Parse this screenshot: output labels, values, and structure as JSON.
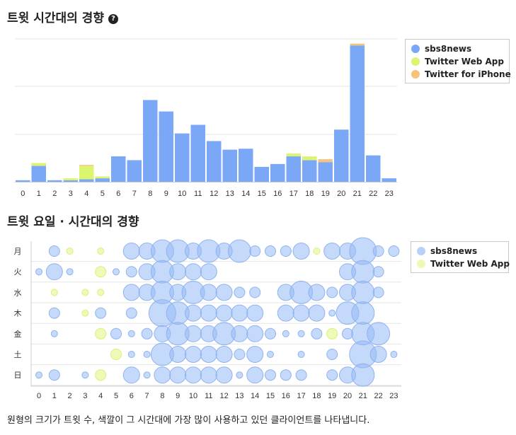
{
  "chart1": {
    "title": "트윗 시간대의 경향",
    "help_icon": "question-circle-icon"
  },
  "chart2": {
    "title": "트윗 요일 · 시간대의 경향"
  },
  "caption": "원형의 크기가 트윗 수, 색깔이 그 시간대에 가장 많이 사용하고 있던 클라이언트를 나타냅니다.",
  "legend1": [
    {
      "name": "sbs8news",
      "color": "#7ba7f7"
    },
    {
      "name": "Twitter Web App",
      "color": "#dcf56e"
    },
    {
      "name": "Twitter for iPhone",
      "color": "#f7c27b"
    }
  ],
  "legend2": [
    {
      "name": "sbs8news",
      "color": "#b9d0fa"
    },
    {
      "name": "Twitter Web App",
      "color": "#eefab4"
    }
  ],
  "chart_data": [
    {
      "type": "bar",
      "title": "트윗 시간대의 경향",
      "stacked": true,
      "categories": [
        "0",
        "1",
        "2",
        "3",
        "4",
        "5",
        "6",
        "7",
        "8",
        "9",
        "10",
        "11",
        "12",
        "13",
        "14",
        "15",
        "16",
        "17",
        "18",
        "19",
        "20",
        "21",
        "22",
        "23"
      ],
      "series": [
        {
          "name": "sbs8news",
          "color": "#7ba7f7",
          "values": [
            0.2,
            1.7,
            0.2,
            0.2,
            0.3,
            0.4,
            2.7,
            2.3,
            8.6,
            7.4,
            5.1,
            6.0,
            4.3,
            3.4,
            3.5,
            1.6,
            1.9,
            2.7,
            2.3,
            2.1,
            5.5,
            14.3,
            2.8,
            0.4
          ]
        },
        {
          "name": "Twitter Web App",
          "color": "#dcf56e",
          "values": [
            0,
            0.3,
            0,
            0.2,
            1.4,
            0.2,
            0,
            0,
            0,
            0,
            0,
            0,
            0,
            0,
            0,
            0,
            0,
            0.3,
            0.4,
            0,
            0,
            0,
            0,
            0
          ]
        },
        {
          "name": "Twitter for iPhone",
          "color": "#f7c27b",
          "values": [
            0,
            0,
            0,
            0,
            0.1,
            0,
            0,
            0,
            0,
            0,
            0,
            0,
            0,
            0,
            0,
            0,
            0,
            0,
            0,
            0.3,
            0,
            0.2,
            0,
            0
          ]
        }
      ],
      "ylim": [
        0,
        15
      ],
      "grid": true,
      "legend": "top-right"
    },
    {
      "type": "scatter",
      "title": "트윗 요일 · 시간대의 경향",
      "x": [
        "0",
        "1",
        "2",
        "3",
        "4",
        "5",
        "6",
        "7",
        "8",
        "9",
        "10",
        "11",
        "12",
        "13",
        "14",
        "15",
        "16",
        "17",
        "18",
        "19",
        "20",
        "21",
        "22",
        "23"
      ],
      "y": [
        "月",
        "火",
        "水",
        "木",
        "金",
        "土",
        "日"
      ],
      "size_meaning": "트윗 수",
      "series": [
        {
          "name": "sbs8news",
          "color": "#b9d0fa"
        },
        {
          "name": "Twitter Web App",
          "color": "#eefab4"
        }
      ],
      "legend": "top-right",
      "points": [
        {
          "d": 0,
          "h": 1,
          "s": 2,
          "c": 0
        },
        {
          "d": 0,
          "h": 2,
          "s": 1,
          "c": 1
        },
        {
          "d": 0,
          "h": 4,
          "s": 1,
          "c": 1
        },
        {
          "d": 0,
          "h": 6,
          "s": 3,
          "c": 0
        },
        {
          "d": 0,
          "h": 7,
          "s": 3,
          "c": 0
        },
        {
          "d": 0,
          "h": 8,
          "s": 4,
          "c": 0
        },
        {
          "d": 0,
          "h": 9,
          "s": 4,
          "c": 0
        },
        {
          "d": 0,
          "h": 10,
          "s": 3,
          "c": 0
        },
        {
          "d": 0,
          "h": 11,
          "s": 4,
          "c": 0
        },
        {
          "d": 0,
          "h": 12,
          "s": 3,
          "c": 0
        },
        {
          "d": 0,
          "h": 13,
          "s": 4,
          "c": 0
        },
        {
          "d": 0,
          "h": 14,
          "s": 2,
          "c": 0
        },
        {
          "d": 0,
          "h": 15,
          "s": 2,
          "c": 0
        },
        {
          "d": 0,
          "h": 16,
          "s": 2,
          "c": 0
        },
        {
          "d": 0,
          "h": 17,
          "s": 3,
          "c": 0
        },
        {
          "d": 0,
          "h": 18,
          "s": 1,
          "c": 1
        },
        {
          "d": 0,
          "h": 19,
          "s": 3,
          "c": 0
        },
        {
          "d": 0,
          "h": 20,
          "s": 3,
          "c": 0
        },
        {
          "d": 0,
          "h": 21,
          "s": 5,
          "c": 0
        },
        {
          "d": 0,
          "h": 22,
          "s": 2,
          "c": 0
        },
        {
          "d": 0,
          "h": 23,
          "s": 2,
          "c": 0
        },
        {
          "d": 1,
          "h": 0,
          "s": 1,
          "c": 0
        },
        {
          "d": 1,
          "h": 1,
          "s": 3,
          "c": 0
        },
        {
          "d": 1,
          "h": 2,
          "s": 1,
          "c": 0
        },
        {
          "d": 1,
          "h": 4,
          "s": 2,
          "c": 1
        },
        {
          "d": 1,
          "h": 5,
          "s": 1,
          "c": 0
        },
        {
          "d": 1,
          "h": 6,
          "s": 2,
          "c": 0
        },
        {
          "d": 1,
          "h": 7,
          "s": 3,
          "c": 0
        },
        {
          "d": 1,
          "h": 8,
          "s": 4,
          "c": 0
        },
        {
          "d": 1,
          "h": 9,
          "s": 3,
          "c": 0
        },
        {
          "d": 1,
          "h": 10,
          "s": 3,
          "c": 0
        },
        {
          "d": 1,
          "h": 11,
          "s": 3,
          "c": 0
        },
        {
          "d": 1,
          "h": 20,
          "s": 3,
          "c": 0
        },
        {
          "d": 1,
          "h": 21,
          "s": 4,
          "c": 0
        },
        {
          "d": 1,
          "h": 22,
          "s": 2,
          "c": 0
        },
        {
          "d": 2,
          "h": 1,
          "s": 1,
          "c": 1
        },
        {
          "d": 2,
          "h": 3,
          "s": 1,
          "c": 1
        },
        {
          "d": 2,
          "h": 4,
          "s": 1,
          "c": 1
        },
        {
          "d": 2,
          "h": 6,
          "s": 3,
          "c": 0
        },
        {
          "d": 2,
          "h": 7,
          "s": 3,
          "c": 0
        },
        {
          "d": 2,
          "h": 8,
          "s": 4,
          "c": 0
        },
        {
          "d": 2,
          "h": 9,
          "s": 3,
          "c": 0
        },
        {
          "d": 2,
          "h": 10,
          "s": 4,
          "c": 0
        },
        {
          "d": 2,
          "h": 11,
          "s": 3,
          "c": 0
        },
        {
          "d": 2,
          "h": 12,
          "s": 3,
          "c": 0
        },
        {
          "d": 2,
          "h": 13,
          "s": 2,
          "c": 0
        },
        {
          "d": 2,
          "h": 14,
          "s": 2,
          "c": 0
        },
        {
          "d": 2,
          "h": 16,
          "s": 3,
          "c": 0
        },
        {
          "d": 2,
          "h": 17,
          "s": 4,
          "c": 0
        },
        {
          "d": 2,
          "h": 18,
          "s": 3,
          "c": 0
        },
        {
          "d": 2,
          "h": 19,
          "s": 2,
          "c": 0
        },
        {
          "d": 2,
          "h": 20,
          "s": 3,
          "c": 0
        },
        {
          "d": 2,
          "h": 21,
          "s": 4,
          "c": 0
        },
        {
          "d": 2,
          "h": 22,
          "s": 2,
          "c": 0
        },
        {
          "d": 3,
          "h": 1,
          "s": 2,
          "c": 0
        },
        {
          "d": 3,
          "h": 3,
          "s": 1,
          "c": 1
        },
        {
          "d": 3,
          "h": 4,
          "s": 2,
          "c": 0
        },
        {
          "d": 3,
          "h": 6,
          "s": 2,
          "c": 0
        },
        {
          "d": 3,
          "h": 8,
          "s": 5,
          "c": 0
        },
        {
          "d": 3,
          "h": 9,
          "s": 4,
          "c": 0
        },
        {
          "d": 3,
          "h": 10,
          "s": 3,
          "c": 0
        },
        {
          "d": 3,
          "h": 11,
          "s": 3,
          "c": 0
        },
        {
          "d": 3,
          "h": 12,
          "s": 3,
          "c": 0
        },
        {
          "d": 3,
          "h": 13,
          "s": 3,
          "c": 0
        },
        {
          "d": 3,
          "h": 14,
          "s": 3,
          "c": 0
        },
        {
          "d": 3,
          "h": 16,
          "s": 3,
          "c": 0
        },
        {
          "d": 3,
          "h": 17,
          "s": 3,
          "c": 0
        },
        {
          "d": 3,
          "h": 18,
          "s": 3,
          "c": 0
        },
        {
          "d": 3,
          "h": 19,
          "s": 1,
          "c": 0
        },
        {
          "d": 3,
          "h": 20,
          "s": 4,
          "c": 0
        },
        {
          "d": 3,
          "h": 21,
          "s": 4,
          "c": 0
        },
        {
          "d": 4,
          "h": 1,
          "s": 1,
          "c": 0
        },
        {
          "d": 4,
          "h": 4,
          "s": 2,
          "c": 1
        },
        {
          "d": 4,
          "h": 5,
          "s": 2,
          "c": 0
        },
        {
          "d": 4,
          "h": 6,
          "s": 1,
          "c": 0
        },
        {
          "d": 4,
          "h": 7,
          "s": 2,
          "c": 0
        },
        {
          "d": 4,
          "h": 8,
          "s": 3,
          "c": 0
        },
        {
          "d": 4,
          "h": 9,
          "s": 4,
          "c": 0
        },
        {
          "d": 4,
          "h": 10,
          "s": 3,
          "c": 0
        },
        {
          "d": 4,
          "h": 11,
          "s": 3,
          "c": 0
        },
        {
          "d": 4,
          "h": 12,
          "s": 4,
          "c": 0
        },
        {
          "d": 4,
          "h": 13,
          "s": 3,
          "c": 0
        },
        {
          "d": 4,
          "h": 14,
          "s": 3,
          "c": 0
        },
        {
          "d": 4,
          "h": 15,
          "s": 2,
          "c": 0
        },
        {
          "d": 4,
          "h": 16,
          "s": 1,
          "c": 0
        },
        {
          "d": 4,
          "h": 17,
          "s": 1,
          "c": 0
        },
        {
          "d": 4,
          "h": 18,
          "s": 2,
          "c": 0
        },
        {
          "d": 4,
          "h": 19,
          "s": 2,
          "c": 1
        },
        {
          "d": 4,
          "h": 20,
          "s": 2,
          "c": 0
        },
        {
          "d": 4,
          "h": 21,
          "s": 4,
          "c": 0
        },
        {
          "d": 4,
          "h": 22,
          "s": 4,
          "c": 0
        },
        {
          "d": 5,
          "h": 5,
          "s": 2,
          "c": 1
        },
        {
          "d": 5,
          "h": 6,
          "s": 1,
          "c": 0
        },
        {
          "d": 5,
          "h": 7,
          "s": 1,
          "c": 0
        },
        {
          "d": 5,
          "h": 8,
          "s": 4,
          "c": 0
        },
        {
          "d": 5,
          "h": 9,
          "s": 3,
          "c": 0
        },
        {
          "d": 5,
          "h": 10,
          "s": 3,
          "c": 0
        },
        {
          "d": 5,
          "h": 11,
          "s": 3,
          "c": 0
        },
        {
          "d": 5,
          "h": 12,
          "s": 3,
          "c": 0
        },
        {
          "d": 5,
          "h": 13,
          "s": 2,
          "c": 0
        },
        {
          "d": 5,
          "h": 14,
          "s": 3,
          "c": 0
        },
        {
          "d": 5,
          "h": 15,
          "s": 1,
          "c": 0
        },
        {
          "d": 5,
          "h": 17,
          "s": 1,
          "c": 0
        },
        {
          "d": 5,
          "h": 19,
          "s": 2,
          "c": 0
        },
        {
          "d": 5,
          "h": 21,
          "s": 5,
          "c": 0
        },
        {
          "d": 5,
          "h": 22,
          "s": 3,
          "c": 0
        },
        {
          "d": 5,
          "h": 23,
          "s": 1,
          "c": 0
        },
        {
          "d": 6,
          "h": 0,
          "s": 1,
          "c": 0
        },
        {
          "d": 6,
          "h": 1,
          "s": 2,
          "c": 0
        },
        {
          "d": 6,
          "h": 3,
          "s": 1,
          "c": 0
        },
        {
          "d": 6,
          "h": 4,
          "s": 2,
          "c": 1
        },
        {
          "d": 6,
          "h": 6,
          "s": 3,
          "c": 0
        },
        {
          "d": 6,
          "h": 7,
          "s": 1,
          "c": 0
        },
        {
          "d": 6,
          "h": 8,
          "s": 3,
          "c": 0
        },
        {
          "d": 6,
          "h": 9,
          "s": 3,
          "c": 0
        },
        {
          "d": 6,
          "h": 10,
          "s": 3,
          "c": 0
        },
        {
          "d": 6,
          "h": 11,
          "s": 3,
          "c": 0
        },
        {
          "d": 6,
          "h": 12,
          "s": 3,
          "c": 0
        },
        {
          "d": 6,
          "h": 13,
          "s": 1,
          "c": 0
        },
        {
          "d": 6,
          "h": 14,
          "s": 3,
          "c": 0
        },
        {
          "d": 6,
          "h": 15,
          "s": 2,
          "c": 0
        },
        {
          "d": 6,
          "h": 16,
          "s": 2,
          "c": 0
        },
        {
          "d": 6,
          "h": 17,
          "s": 2,
          "c": 0
        },
        {
          "d": 6,
          "h": 19,
          "s": 2,
          "c": 0
        },
        {
          "d": 6,
          "h": 20,
          "s": 3,
          "c": 0
        },
        {
          "d": 6,
          "h": 21,
          "s": 4,
          "c": 0
        }
      ]
    }
  ]
}
